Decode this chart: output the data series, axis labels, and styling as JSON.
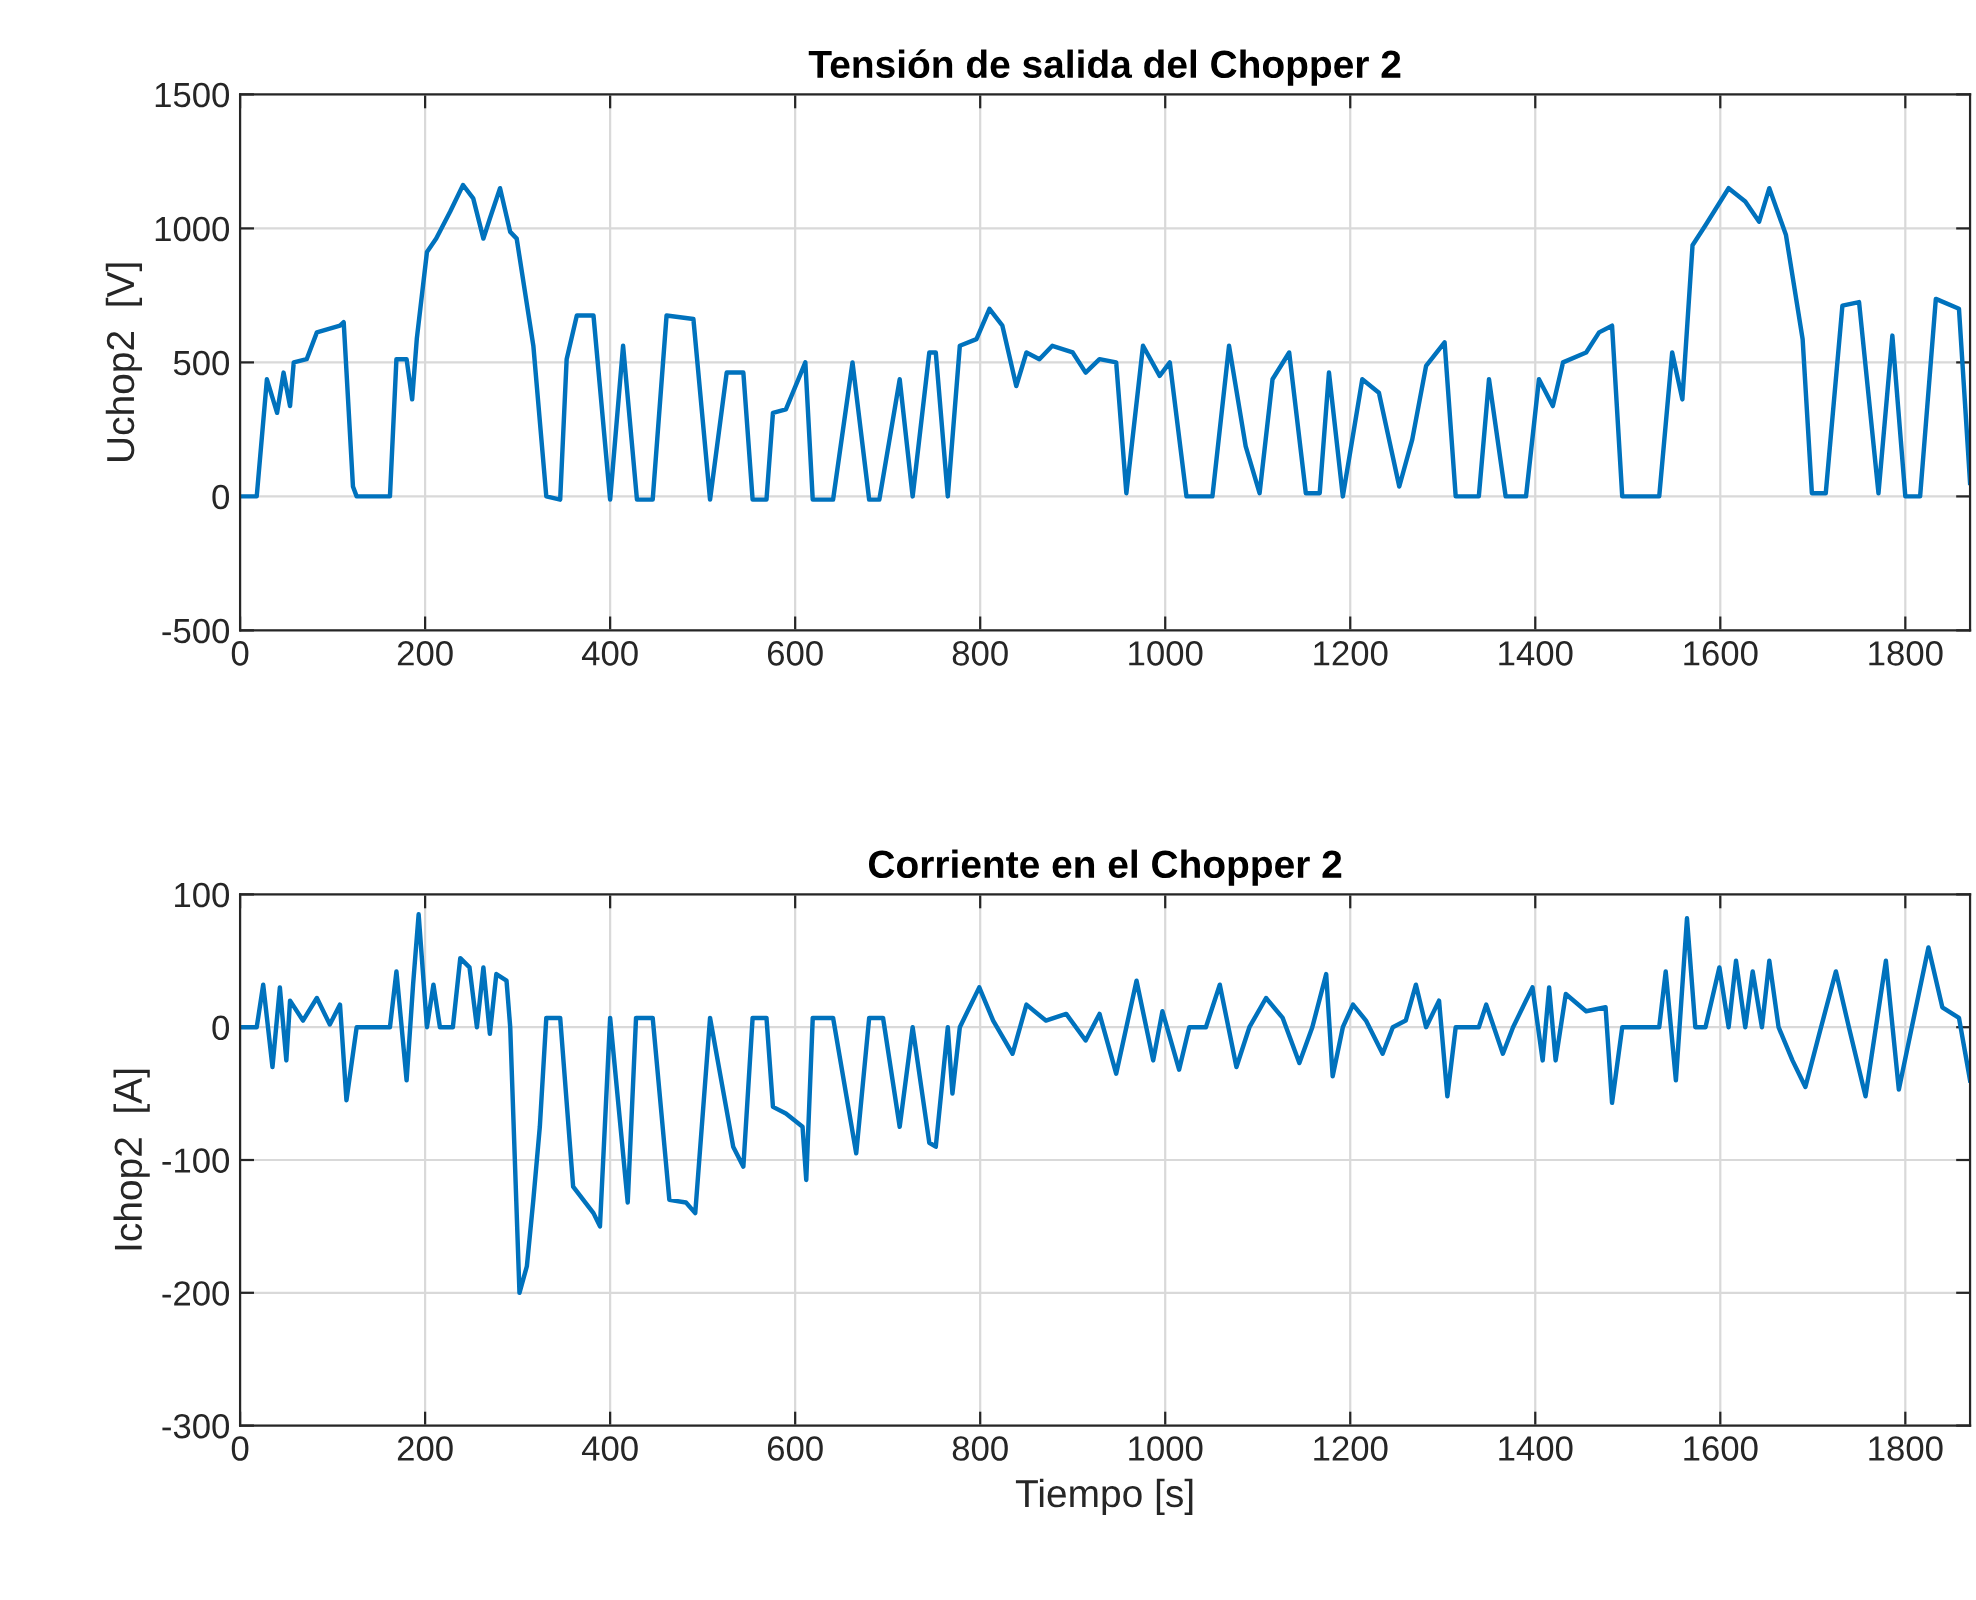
{
  "chart_data": [
    {
      "type": "line",
      "title": "Tensión de salida del Chopper 2",
      "ylabel": "Uchop2  [V]",
      "xlim": [
        0,
        1870
      ],
      "xticks": [
        0,
        200,
        400,
        600,
        800,
        1000,
        1200,
        1400,
        1600,
        1800
      ],
      "ylim": [
        -500,
        1500
      ],
      "yticks": [
        -500,
        0,
        500,
        1000,
        1500
      ],
      "grid": true,
      "series": [
        {
          "color": "#0072bd",
          "x": [
            0,
            18,
            29,
            40,
            47,
            54,
            58,
            72,
            83,
            108,
            112,
            122,
            126,
            162,
            169,
            180,
            186,
            191,
            202,
            212,
            227,
            241,
            252,
            263,
            270,
            281,
            292,
            299,
            317,
            331,
            346,
            353,
            364,
            382,
            400,
            414,
            429,
            446,
            461,
            490,
            508,
            526,
            544,
            554,
            569,
            576,
            590,
            611,
            619,
            641,
            662,
            680,
            691,
            713,
            727,
            745,
            752,
            765,
            778,
            796,
            810,
            824,
            839,
            850,
            864,
            878,
            900,
            914,
            929,
            947,
            958,
            976,
            994,
            1005,
            1023,
            1051,
            1069,
            1087,
            1102,
            1116,
            1134,
            1152,
            1167,
            1177,
            1192,
            1213,
            1231,
            1253,
            1267,
            1282,
            1302,
            1314,
            1339,
            1350,
            1368,
            1390,
            1404,
            1419,
            1430,
            1455,
            1469,
            1483,
            1494,
            1534,
            1548,
            1559,
            1570,
            1584,
            1609,
            1627,
            1642,
            1653,
            1671,
            1689,
            1699,
            1714,
            1732,
            1750,
            1771,
            1786,
            1800,
            1816,
            1833,
            1858,
            1870
          ],
          "values": [
            0,
            0,
            437,
            312,
            462,
            337,
            500,
            512,
            612,
            637,
            650,
            37,
            0,
            0,
            512,
            512,
            362,
            587,
            912,
            962,
            1062,
            1162,
            1112,
            962,
            1037,
            1150,
            987,
            962,
            562,
            0,
            -12,
            512,
            675,
            675,
            -12,
            562,
            -12,
            -12,
            675,
            662,
            -12,
            462,
            462,
            -12,
            -12,
            312,
            325,
            500,
            -12,
            -12,
            500,
            -12,
            -12,
            437,
            0,
            537,
            537,
            0,
            562,
            587,
            700,
            637,
            412,
            537,
            512,
            562,
            537,
            462,
            512,
            500,
            12,
            562,
            450,
            500,
            0,
            0,
            562,
            187,
            12,
            437,
            537,
            12,
            12,
            462,
            0,
            437,
            387,
            37,
            212,
            487,
            575,
            0,
            0,
            437,
            0,
            0,
            437,
            337,
            500,
            537,
            612,
            637,
            0,
            0,
            537,
            362,
            937,
            1012,
            1150,
            1100,
            1025,
            1150,
            975,
            587,
            12,
            12,
            712,
            725,
            12,
            600,
            0,
            0,
            737,
            700,
            50
          ]
        }
      ]
    },
    {
      "type": "line",
      "title": "Corriente en el Chopper 2",
      "xlabel": "Tiempo [s]",
      "ylabel": "Ichop2  [A]",
      "xlim": [
        0,
        1870
      ],
      "xticks": [
        0,
        200,
        400,
        600,
        800,
        1000,
        1200,
        1400,
        1600,
        1800
      ],
      "ylim": [
        -300,
        100
      ],
      "yticks": [
        -300,
        -200,
        -100,
        0,
        100
      ],
      "grid": true,
      "series": [
        {
          "color": "#0072bd",
          "x": [
            0,
            18,
            25,
            35,
            43,
            50,
            54,
            68,
            83,
            97,
            108,
            115,
            126,
            162,
            169,
            180,
            187,
            193,
            202,
            209,
            216,
            230,
            238,
            248,
            256,
            263,
            270,
            277,
            288,
            292,
            302,
            310,
            317,
            324,
            331,
            346,
            360,
            382,
            389,
            400,
            419,
            428,
            446,
            464,
            482,
            492,
            508,
            533,
            544,
            554,
            569,
            576,
            590,
            608,
            612,
            619,
            641,
            666,
            680,
            695,
            713,
            727,
            745,
            752,
            765,
            770,
            778,
            799,
            814,
            835,
            850,
            871,
            893,
            914,
            929,
            947,
            969,
            987,
            997,
            1015,
            1026,
            1044,
            1059,
            1077,
            1091,
            1109,
            1127,
            1145,
            1159,
            1174,
            1181,
            1192,
            1203,
            1217,
            1235,
            1246,
            1260,
            1271,
            1282,
            1296,
            1305,
            1314,
            1339,
            1347,
            1365,
            1376,
            1397,
            1408,
            1415,
            1422,
            1433,
            1455,
            1476,
            1483,
            1494,
            1534,
            1541,
            1552,
            1564,
            1573,
            1584,
            1599,
            1609,
            1617,
            1627,
            1635,
            1645,
            1653,
            1663,
            1678,
            1692,
            1707,
            1725,
            1739,
            1757,
            1779,
            1793,
            1807,
            1825,
            1840,
            1858,
            1870
          ],
          "values": [
            0,
            0,
            32,
            -30,
            30,
            -25,
            20,
            5,
            22,
            2,
            17,
            -55,
            0,
            0,
            42,
            -40,
            32,
            85,
            0,
            32,
            0,
            0,
            52,
            45,
            0,
            45,
            -5,
            40,
            35,
            0,
            -200,
            -180,
            -130,
            -75,
            7,
            7,
            -120,
            -140,
            -150,
            7,
            -132,
            7,
            7,
            -130,
            -132,
            -140,
            7,
            -90,
            -105,
            7,
            7,
            -60,
            -65,
            -75,
            -115,
            7,
            7,
            -95,
            7,
            7,
            -75,
            0,
            -87,
            -90,
            0,
            -50,
            0,
            30,
            5,
            -20,
            17,
            5,
            10,
            -10,
            10,
            -35,
            35,
            -25,
            12,
            -32,
            0,
            0,
            32,
            -30,
            0,
            22,
            7,
            -27,
            0,
            40,
            -37,
            0,
            17,
            5,
            -20,
            0,
            5,
            32,
            0,
            20,
            -52,
            0,
            0,
            17,
            -20,
            0,
            30,
            -25,
            30,
            -25,
            25,
            12,
            15,
            -57,
            0,
            0,
            42,
            -40,
            82,
            0,
            0,
            45,
            0,
            50,
            0,
            42,
            0,
            50,
            0,
            -25,
            -45,
            -5,
            42,
            0,
            -52,
            50,
            -47,
            0,
            60,
            15,
            7,
            -40
          ]
        }
      ]
    }
  ]
}
